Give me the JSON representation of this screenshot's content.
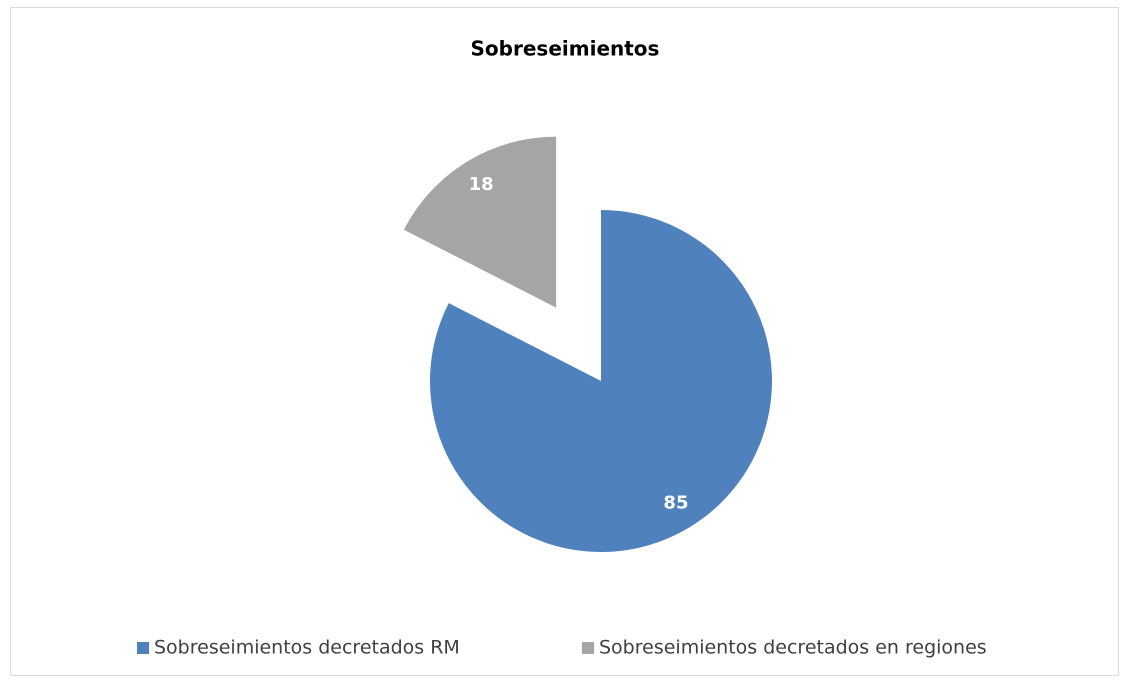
{
  "chart_data": {
    "type": "pie",
    "title": "Sobreseimientos",
    "categories": [
      "Sobreseimientos decretados RM",
      "Sobreseimientos decretados en regiones"
    ],
    "values": [
      85,
      18
    ],
    "colors": [
      "#4f81bd",
      "#a5a5a5"
    ],
    "exploded": [
      false,
      true
    ],
    "legend": "bottom"
  }
}
